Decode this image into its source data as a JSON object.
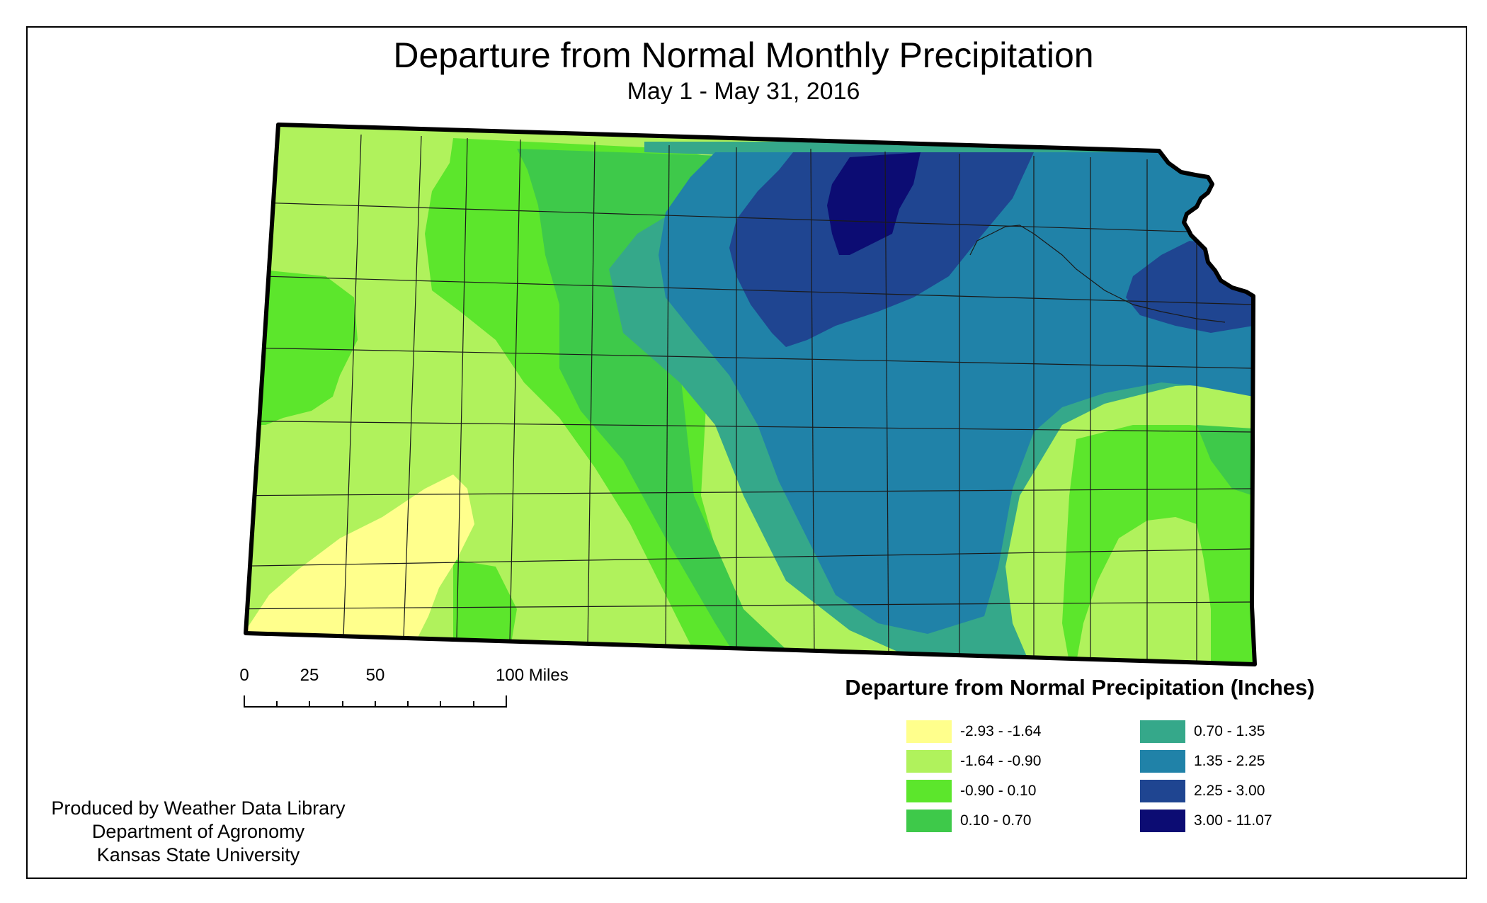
{
  "title": "Departure from Normal Monthly Precipitation",
  "subtitle": "May 1 - May 31, 2016",
  "scale_bar": {
    "labels": [
      "0",
      "25",
      "50",
      "100 Miles"
    ],
    "values": [
      0,
      25,
      50,
      100
    ]
  },
  "credits": [
    "Produced by Weather Data Library",
    "Department of Agronomy",
    "Kansas State University"
  ],
  "legend": {
    "title": "Departure from Normal Precipitation (Inches)",
    "items": [
      {
        "label": "-2.93 - -1.64",
        "color": "#ffff8c"
      },
      {
        "label": "-1.64 - -0.90",
        "color": "#b0f25c"
      },
      {
        "label": "-0.90 - 0.10",
        "color": "#5ce62c"
      },
      {
        "label": "0.10 - 0.70",
        "color": "#3ec94a"
      },
      {
        "label": "0.70 - 1.35",
        "color": "#35a88a"
      },
      {
        "label": "1.35 - 2.25",
        "color": "#2082a8"
      },
      {
        "label": "2.25 - 3.00",
        "color": "#1f4591"
      },
      {
        "label": "3.00 - 11.07",
        "color": "#0c0c73"
      }
    ]
  }
}
